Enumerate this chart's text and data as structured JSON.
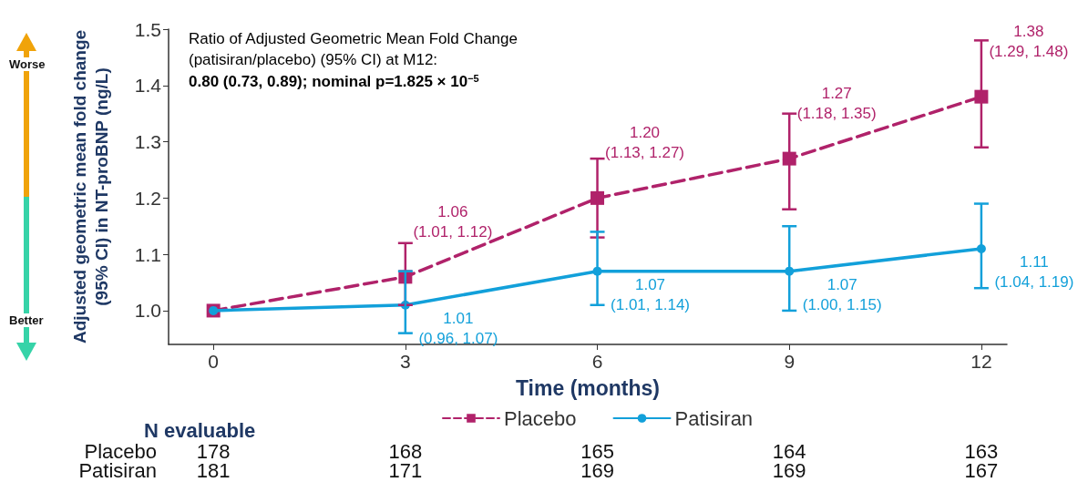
{
  "chart_data": {
    "type": "line",
    "xlabel": "Time (months)",
    "ylabel": "Adjusted geometric mean fold change\n(95% CI) in NT-proBNP (ng/L)",
    "x": [
      0,
      3,
      6,
      9,
      12
    ],
    "xlim": [
      -0.7,
      12.4
    ],
    "xticks": [
      0,
      3,
      6,
      9,
      12
    ],
    "ylim": [
      0.94,
      1.5
    ],
    "yticks": [
      {
        "value": 1,
        "label": "1.0"
      },
      1.1,
      1.2,
      1.3,
      1.4,
      1.5
    ],
    "grid": false,
    "legend": "bottom",
    "series": [
      {
        "name": "Placebo",
        "color": "#b0226a",
        "marker": "square",
        "line_style": "dashed",
        "values": [
          1.0,
          1.06,
          1.2,
          1.27,
          1.38
        ],
        "errors": [
          null,
          [
            1.01,
            1.12
          ],
          [
            1.13,
            1.27
          ],
          [
            1.18,
            1.35
          ],
          [
            1.29,
            1.48
          ]
        ],
        "value_labels": [
          null,
          "1.06\n(1.01, 1.12)",
          "1.20\n(1.13, 1.27)",
          "1.27\n(1.18, 1.35)",
          "1.38\n(1.29, 1.48)"
        ]
      },
      {
        "name": "Patisiran",
        "color": "#12a0da",
        "marker": "circle",
        "line_style": "solid",
        "values": [
          1.0,
          1.01,
          1.07,
          1.07,
          1.11
        ],
        "errors": [
          null,
          [
            0.96,
            1.07
          ],
          [
            1.01,
            1.14
          ],
          [
            1.0,
            1.15
          ],
          [
            1.04,
            1.19
          ]
        ],
        "value_labels": [
          null,
          "1.01\n(0.96, 1.07)",
          "1.07\n(1.01, 1.14)",
          "1.07\n(1.00, 1.15)",
          "1.11\n(1.04, 1.19)"
        ]
      }
    ],
    "annotations": [
      "Ratio of Adjusted Geometric Mean Fold Change",
      "(patisiran/placebo) (95% CI) at M12:",
      "0.80 (0.73, 0.89); nominal p=1.825 × 10$^{−5}$",
      "Worse",
      "Better",
      "N evaluable",
      "Placebo",
      "178",
      "168",
      "165",
      "164",
      "163",
      "Patisiran",
      "181",
      "171",
      "169",
      "169",
      "167"
    ]
  }
}
